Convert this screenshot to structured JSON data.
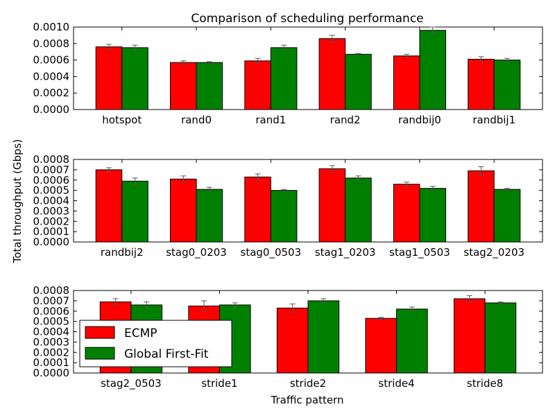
{
  "chart_data": {
    "type": "bar",
    "title": "Comparison of scheduling performance",
    "xlabel": "Traffic pattern",
    "ylabel": "Total throughput (Gbps)",
    "colors": {
      "ECMP": "#ff0000",
      "Global First-Fit": "#008000",
      "errorbar": "#555555"
    },
    "legend": {
      "position": "lower-left",
      "entries": [
        "ECMP",
        "Global First-Fit"
      ]
    },
    "panels": [
      {
        "ylim": [
          0,
          0.001
        ],
        "yticks": [
          "0.0000",
          "0.0002",
          "0.0004",
          "0.0006",
          "0.0008",
          "0.0010"
        ],
        "categories": [
          "hotspot",
          "rand0",
          "rand1",
          "rand2",
          "randbij0",
          "randbij1"
        ],
        "series": [
          {
            "name": "ECMP",
            "values": [
              0.00076,
              0.00057,
              0.00059,
              0.00086,
              0.00065,
              0.00061
            ],
            "errors": [
              3e-05,
              2e-05,
              3e-05,
              4e-05,
              2e-05,
              3e-05
            ]
          },
          {
            "name": "Global First-Fit",
            "values": [
              0.00075,
              0.00057,
              0.00075,
              0.00067,
              0.00096,
              0.0006
            ],
            "errors": [
              3e-05,
              1e-05,
              3e-05,
              1e-05,
              4e-05,
              2e-05
            ]
          }
        ]
      },
      {
        "ylim": [
          0,
          0.0008
        ],
        "yticks": [
          "0.0000",
          "0.0001",
          "0.0002",
          "0.0003",
          "0.0004",
          "0.0005",
          "0.0006",
          "0.0007",
          "0.0008"
        ],
        "categories": [
          "randbij2",
          "stag0_0203",
          "stag0_0503",
          "stag1_0203",
          "stag1_0503",
          "stag2_0203"
        ],
        "series": [
          {
            "name": "ECMP",
            "values": [
              0.0007,
              0.00061,
              0.00063,
              0.00071,
              0.00056,
              0.00069
            ],
            "errors": [
              2e-05,
              3e-05,
              3e-05,
              3e-05,
              2e-05,
              4e-05
            ]
          },
          {
            "name": "Global First-Fit",
            "values": [
              0.00059,
              0.00051,
              0.0005,
              0.00062,
              0.00052,
              0.00051
            ],
            "errors": [
              3e-05,
              2e-05,
              1e-05,
              2e-05,
              2e-05,
              1e-05
            ]
          }
        ]
      },
      {
        "ylim": [
          0,
          0.0008
        ],
        "yticks": [
          "0.0000",
          "0.0001",
          "0.0002",
          "0.0003",
          "0.0004",
          "0.0005",
          "0.0006",
          "0.0007",
          "0.0008"
        ],
        "categories": [
          "stag2_0503",
          "stride1",
          "stride2",
          "stride4",
          "stride8"
        ],
        "series": [
          {
            "name": "ECMP",
            "values": [
              0.00069,
              0.00065,
              0.00063,
              0.00053,
              0.00072
            ],
            "errors": [
              3e-05,
              5e-05,
              4e-05,
              1e-05,
              3e-05
            ]
          },
          {
            "name": "Global First-Fit",
            "values": [
              0.00066,
              0.00066,
              0.0007,
              0.00062,
              0.00068
            ],
            "errors": [
              3e-05,
              2e-05,
              2e-05,
              2e-05,
              1e-05
            ]
          }
        ]
      }
    ]
  }
}
